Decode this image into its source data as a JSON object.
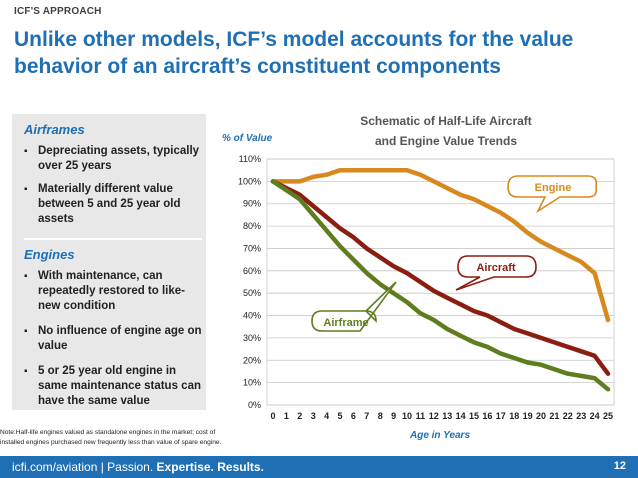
{
  "header": {
    "kicker": "ICF'S APPROACH",
    "title_line1": "Unlike other models, ICF’s model accounts for the value",
    "title_line2": "behavior of an aircraft’s constituent components"
  },
  "sidebar": {
    "airframes_heading": "Airframes",
    "airframes_items": [
      "Depreciating assets, typically over 25 years",
      "Materially different value between 5 and 25 year old assets"
    ],
    "engines_heading": "Engines",
    "engines_items": [
      "With maintenance, can repeatedly restored to like-new condition",
      "No influence of engine age on value",
      "5 or 25 year old engine in same maintenance status can have the same value"
    ],
    "bullet_glyph": "▪"
  },
  "note": {
    "line1": "Note:Half-life engines valued as standalone engines in the market; cost of",
    "line2": "installed engines purchased new frequently less than value of spare engine."
  },
  "footer": {
    "site": "icfi.com/aviation",
    "separator": " | Passion. ",
    "tagline": "Expertise. Results.",
    "page_number": "12"
  },
  "chart_data": {
    "type": "line",
    "title_line1": "Schematic of Half-Life Aircraft",
    "title_line2": "and Engine Value Trends",
    "ylabel": "% of Value",
    "xlabel": "Age in Years",
    "x": [
      0,
      1,
      2,
      3,
      4,
      5,
      6,
      7,
      8,
      9,
      10,
      11,
      12,
      13,
      14,
      15,
      16,
      17,
      18,
      19,
      20,
      21,
      22,
      23,
      24,
      25
    ],
    "ylim": [
      0,
      110
    ],
    "yticks": [
      0,
      10,
      20,
      30,
      40,
      50,
      60,
      70,
      80,
      90,
      100,
      110
    ],
    "ytick_suffix": "%",
    "grid": true,
    "series": [
      {
        "name": "Engine",
        "color": "#d8891d",
        "values": [
          100,
          100,
          100,
          102,
          103,
          105,
          105,
          105,
          105,
          105,
          105,
          103,
          100,
          97,
          94,
          92,
          89,
          86,
          82,
          77,
          73,
          70,
          67,
          64,
          59,
          38
        ]
      },
      {
        "name": "Aircraft",
        "color": "#8b1e12",
        "values": [
          100,
          97,
          94,
          89,
          84,
          79,
          75,
          70,
          66,
          62,
          59,
          55,
          51,
          48,
          45,
          42,
          40,
          37,
          34,
          32,
          30,
          28,
          26,
          24,
          22,
          14
        ]
      },
      {
        "name": "Airframe",
        "color": "#5e7d1e",
        "values": [
          100,
          96,
          92,
          85,
          78,
          71,
          65,
          59,
          54,
          50,
          46,
          41,
          38,
          34,
          31,
          28,
          26,
          23,
          21,
          19,
          18,
          16,
          14,
          13,
          12,
          7
        ]
      }
    ]
  }
}
